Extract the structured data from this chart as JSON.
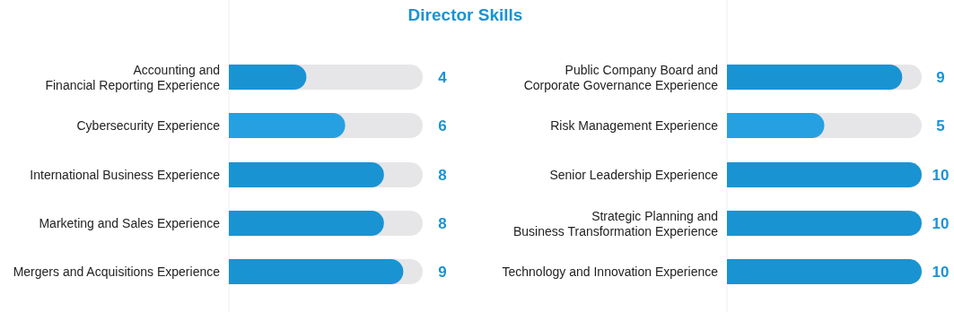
{
  "chart_data": [
    {
      "type": "bar",
      "orientation": "horizontal",
      "title": "Director Skills",
      "categories": [
        "Accounting and\nFinancial Reporting Experience",
        "Cybersecurity Experience",
        "International Business Experience",
        "Marketing and Sales Experience",
        "Mergers and Acquisitions Experience"
      ],
      "values": [
        4,
        6,
        8,
        8,
        9
      ],
      "colors": [
        "#1a93d3",
        "#27a0e2",
        "#1a93d3",
        "#1a93d3",
        "#1a93d3"
      ],
      "xlim": [
        0,
        10
      ],
      "data_labels": true
    },
    {
      "type": "bar",
      "orientation": "horizontal",
      "categories": [
        "Public Company Board and\nCorporate Governance Experience",
        "Risk Management Experience",
        "Senior Leadership Experience",
        "Strategic Planning and\nBusiness Transformation Experience",
        "Technology and Innovation Experience"
      ],
      "values": [
        9,
        5,
        10,
        10,
        10
      ],
      "colors": [
        "#1a93d3",
        "#27a0e2",
        "#1a93d3",
        "#1a93d3",
        "#1a93d3"
      ],
      "xlim": [
        0,
        10
      ],
      "data_labels": true
    }
  ]
}
